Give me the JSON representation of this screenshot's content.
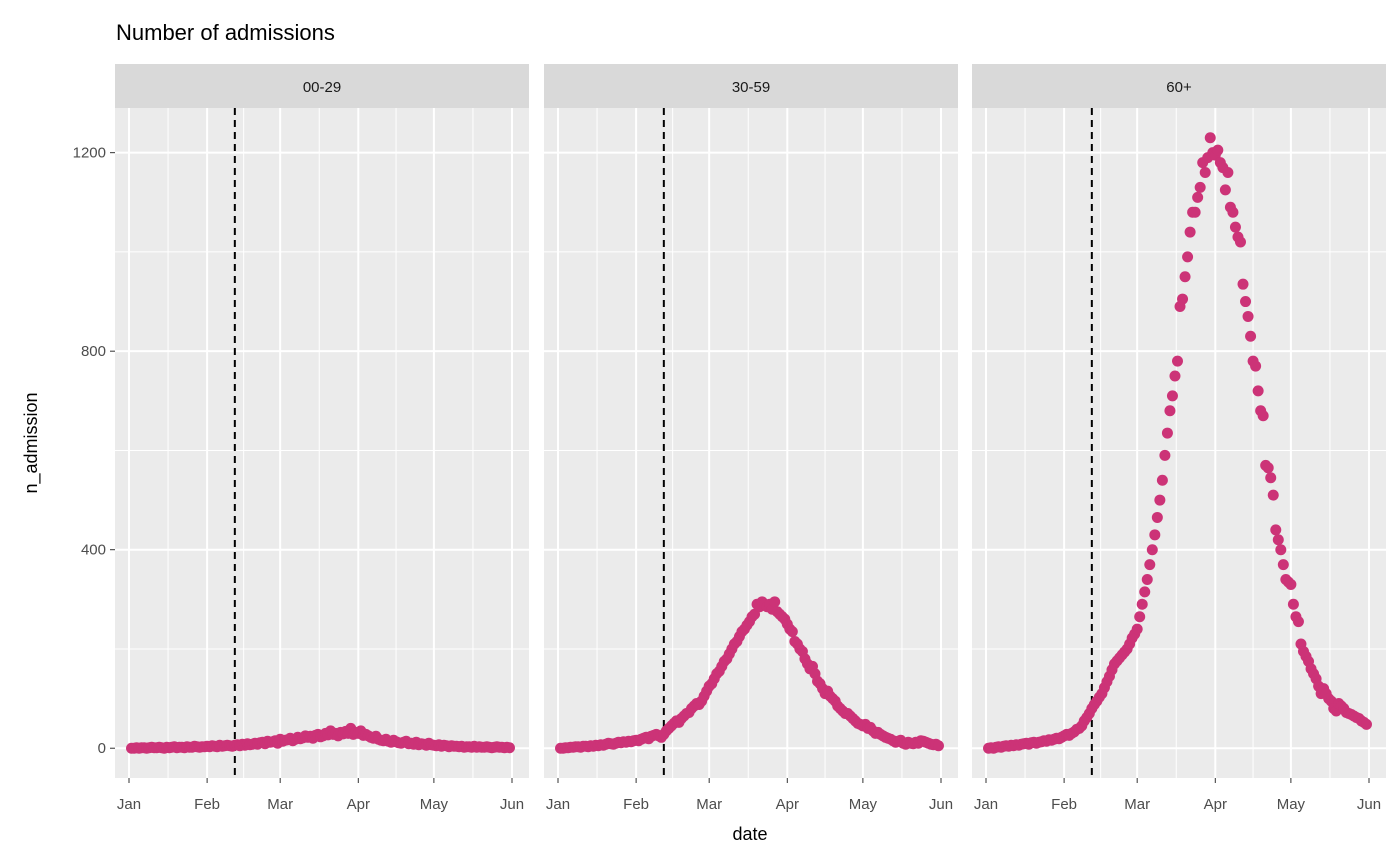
{
  "chart_data": {
    "type": "scatter",
    "title": "Number of admissions",
    "xlabel": "date",
    "ylabel": "n_admission",
    "facets": [
      "00-29",
      "30-59",
      "60+"
    ],
    "x_ticks": [
      "Jan",
      "Feb",
      "Mar",
      "Apr",
      "May",
      "Jun"
    ],
    "x_tick_dates": [
      "2020-01-01",
      "2020-02-01",
      "2020-03-01",
      "2020-04-01",
      "2020-05-01",
      "2020-06-01"
    ],
    "y_ticks": [
      0,
      400,
      800,
      1200
    ],
    "ylim": [
      -60,
      1290
    ],
    "grid": true,
    "dates": {
      "start": "2020-01-02",
      "end": "2020-05-31",
      "step_days": 1
    },
    "vline_date": "2020-02-12",
    "colors": {
      "points": "#cc3377",
      "panel": "#ebebeb",
      "strip": "#d9d9d9",
      "vline": "#000000"
    },
    "series": [
      {
        "facet": "00-29",
        "values": [
          0,
          0,
          1,
          0,
          1,
          1,
          0,
          1,
          2,
          1,
          1,
          2,
          1,
          0,
          2,
          1,
          2,
          3,
          1,
          2,
          2,
          1,
          3,
          2,
          2,
          4,
          3,
          2,
          3,
          3,
          4,
          3,
          5,
          4,
          3,
          6,
          4,
          5,
          6,
          5,
          4,
          6,
          7,
          5,
          8,
          6,
          9,
          7,
          8,
          10,
          8,
          11,
          12,
          9,
          14,
          12,
          13,
          15,
          10,
          18,
          14,
          16,
          17,
          20,
          15,
          18,
          22,
          19,
          21,
          25,
          22,
          24,
          20,
          26,
          28,
          23,
          25,
          30,
          27,
          35,
          28,
          30,
          25,
          32,
          29,
          34,
          30,
          40,
          28,
          32,
          30,
          35,
          26,
          28,
          25,
          22,
          20,
          24,
          18,
          16,
          15,
          18,
          14,
          12,
          16,
          13,
          11,
          10,
          12,
          14,
          9,
          10,
          8,
          12,
          7,
          9,
          8,
          6,
          10,
          7,
          6,
          5,
          7,
          4,
          6,
          5,
          3,
          5,
          4,
          4,
          3,
          4,
          2,
          3,
          3,
          2,
          4,
          2,
          3,
          2,
          2,
          3,
          2,
          1,
          2,
          3,
          2,
          2,
          1,
          2,
          1
        ]
      },
      {
        "facet": "30-59",
        "values": [
          0,
          0,
          1,
          1,
          2,
          2,
          3,
          3,
          2,
          4,
          4,
          3,
          5,
          4,
          6,
          5,
          7,
          6,
          8,
          10,
          9,
          8,
          10,
          12,
          11,
          13,
          12,
          14,
          13,
          15,
          16,
          15,
          18,
          20,
          22,
          19,
          24,
          26,
          28,
          25,
          22,
          28,
          35,
          40,
          45,
          50,
          55,
          52,
          60,
          65,
          70,
          72,
          80,
          85,
          90,
          88,
          95,
          105,
          115,
          125,
          130,
          140,
          150,
          155,
          165,
          175,
          180,
          190,
          200,
          210,
          215,
          225,
          235,
          240,
          248,
          255,
          265,
          270,
          290,
          285,
          295,
          290,
          285,
          290,
          280,
          295,
          275,
          270,
          265,
          260,
          250,
          240,
          235,
          215,
          210,
          200,
          195,
          180,
          170,
          160,
          165,
          150,
          135,
          130,
          120,
          110,
          115,
          105,
          100,
          95,
          85,
          80,
          75,
          70,
          70,
          65,
          60,
          55,
          50,
          48,
          45,
          48,
          40,
          42,
          35,
          30,
          32,
          28,
          25,
          22,
          20,
          18,
          15,
          12,
          14,
          16,
          10,
          8,
          12,
          10,
          9,
          12,
          10,
          15,
          14,
          12,
          10,
          8,
          7,
          8,
          5
        ]
      },
      {
        "facet": "60+",
        "values": [
          0,
          1,
          0,
          2,
          3,
          2,
          4,
          5,
          4,
          6,
          5,
          7,
          6,
          8,
          9,
          10,
          8,
          11,
          12,
          10,
          12,
          13,
          15,
          14,
          17,
          16,
          18,
          20,
          19,
          22,
          25,
          28,
          26,
          30,
          33,
          38,
          40,
          45,
          55,
          62,
          70,
          80,
          88,
          95,
          103,
          110,
          122,
          134,
          145,
          158,
          170,
          176,
          182,
          188,
          194,
          200,
          210,
          222,
          230,
          240,
          265,
          290,
          315,
          340,
          370,
          400,
          430,
          465,
          500,
          540,
          590,
          635,
          680,
          710,
          750,
          780,
          890,
          905,
          950,
          990,
          1040,
          1080,
          1080,
          1110,
          1130,
          1180,
          1160,
          1190,
          1230,
          1200,
          1195,
          1205,
          1180,
          1170,
          1125,
          1160,
          1090,
          1080,
          1050,
          1030,
          1020,
          935,
          900,
          870,
          830,
          780,
          770,
          720,
          680,
          670,
          570,
          565,
          545,
          510,
          440,
          420,
          400,
          370,
          340,
          335,
          330,
          290,
          265,
          255,
          210,
          195,
          185,
          175,
          160,
          150,
          140,
          125,
          110,
          120,
          110,
          100,
          95,
          80,
          75,
          90,
          85,
          80,
          72,
          70,
          68,
          65,
          62,
          60,
          55,
          52,
          48
        ]
      }
    ]
  }
}
